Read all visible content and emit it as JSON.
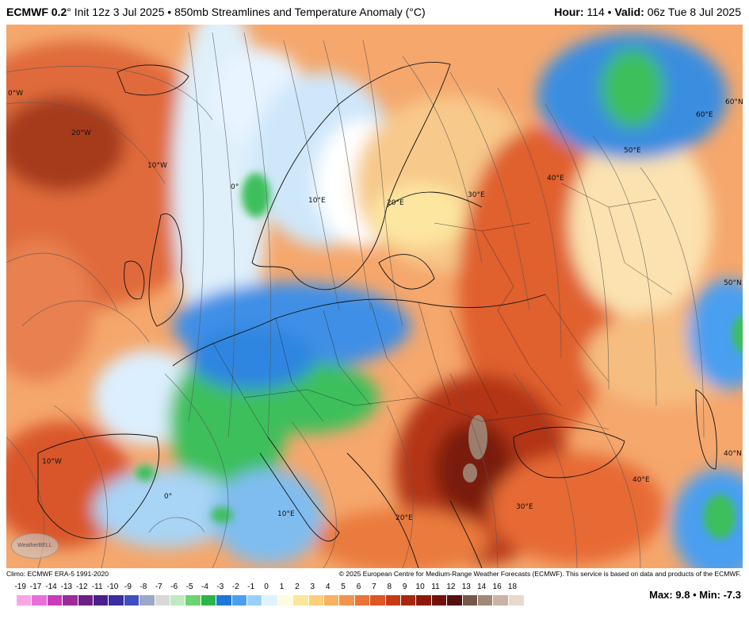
{
  "header": {
    "model": "ECMWF 0.2",
    "degree": "°",
    "init": "Init 12z 3 Jul 2025",
    "sep": "•",
    "product": "850mb Streamlines and Temperature Anomaly (°C)",
    "hour_label": "Hour:",
    "hour": "114",
    "valid_label": "Valid:",
    "valid": "06z Tue 8 Jul 2025"
  },
  "map": {
    "lon_labels": [
      "0°W",
      "20°W",
      "10°W",
      "0°",
      "10°E",
      "20°E",
      "30°E",
      "40°E",
      "50°E",
      "60°E",
      "60°N",
      "50°N",
      "40°N",
      "40°E",
      "30°E",
      "20°E",
      "10°E",
      "0°",
      "10°W"
    ],
    "logo_text": "WeatherBELL"
  },
  "footer": {
    "climo": "Climo: ECMWF ERA-5 1991-2020",
    "copyright": "© 2025 European Centre for Medium-Range Weather Forecasts (ECMWF). This service is based on data and products of the ECMWF."
  },
  "legend": {
    "ticks": [
      "-19",
      "-17",
      "-14",
      "-13",
      "-12",
      "-11",
      "-10",
      "-9",
      "-8",
      "-7",
      "-6",
      "-5",
      "-4",
      "-3",
      "-2",
      "-1",
      "0",
      "1",
      "2",
      "3",
      "4",
      "5",
      "6",
      "7",
      "8",
      "9",
      "10",
      "11",
      "12",
      "13",
      "14",
      "16",
      "18"
    ],
    "colors": [
      "#f7a6e8",
      "#e86fd8",
      "#c83cb8",
      "#9c2a98",
      "#6e1f86",
      "#4a1f8c",
      "#3a2fa0",
      "#3f4fc0",
      "#9aa8c8",
      "#d8d8d8",
      "#bfe9bf",
      "#6fd36f",
      "#2db34a",
      "#1f78d8",
      "#4a9ff0",
      "#9ad0ff",
      "#dff2ff",
      "#fffbe0",
      "#fde79a",
      "#fcd079",
      "#f8b161",
      "#f2934d",
      "#eb7437",
      "#de5526",
      "#c83a17",
      "#a92610",
      "#8c1a0c",
      "#6f130b",
      "#551012",
      "#76584a",
      "#a08878",
      "#c9b3a4",
      "#e8d9cc"
    ]
  },
  "stats": {
    "max_label": "Max:",
    "max": "9.8",
    "min_label": "Min:",
    "min": "-7.3",
    "sep": "•"
  }
}
